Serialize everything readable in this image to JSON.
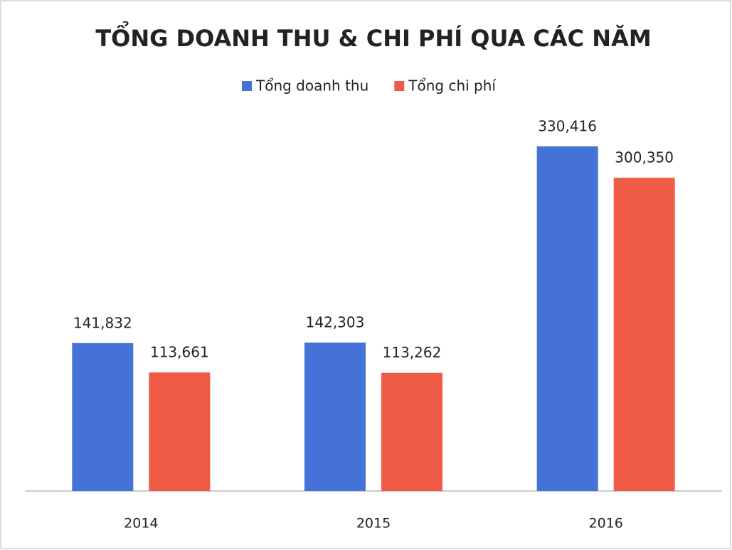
{
  "chart_data": {
    "type": "bar",
    "title": "TỔNG DOANH THU & CHI PHÍ QUA CÁC NĂM",
    "categories": [
      "2014",
      "2015",
      "2016"
    ],
    "series": [
      {
        "name": "Tổng doanh thu",
        "color": "#4472d6",
        "values": [
          141832,
          142303,
          330416
        ],
        "value_labels": [
          "141,832",
          "142,303",
          "330,416"
        ]
      },
      {
        "name": "Tổng chi phí",
        "color": "#ef5b45",
        "values": [
          113661,
          113262,
          300350
        ],
        "value_labels": [
          "113,661",
          "113,262",
          "300,350"
        ]
      }
    ],
    "legend": "top"
  }
}
